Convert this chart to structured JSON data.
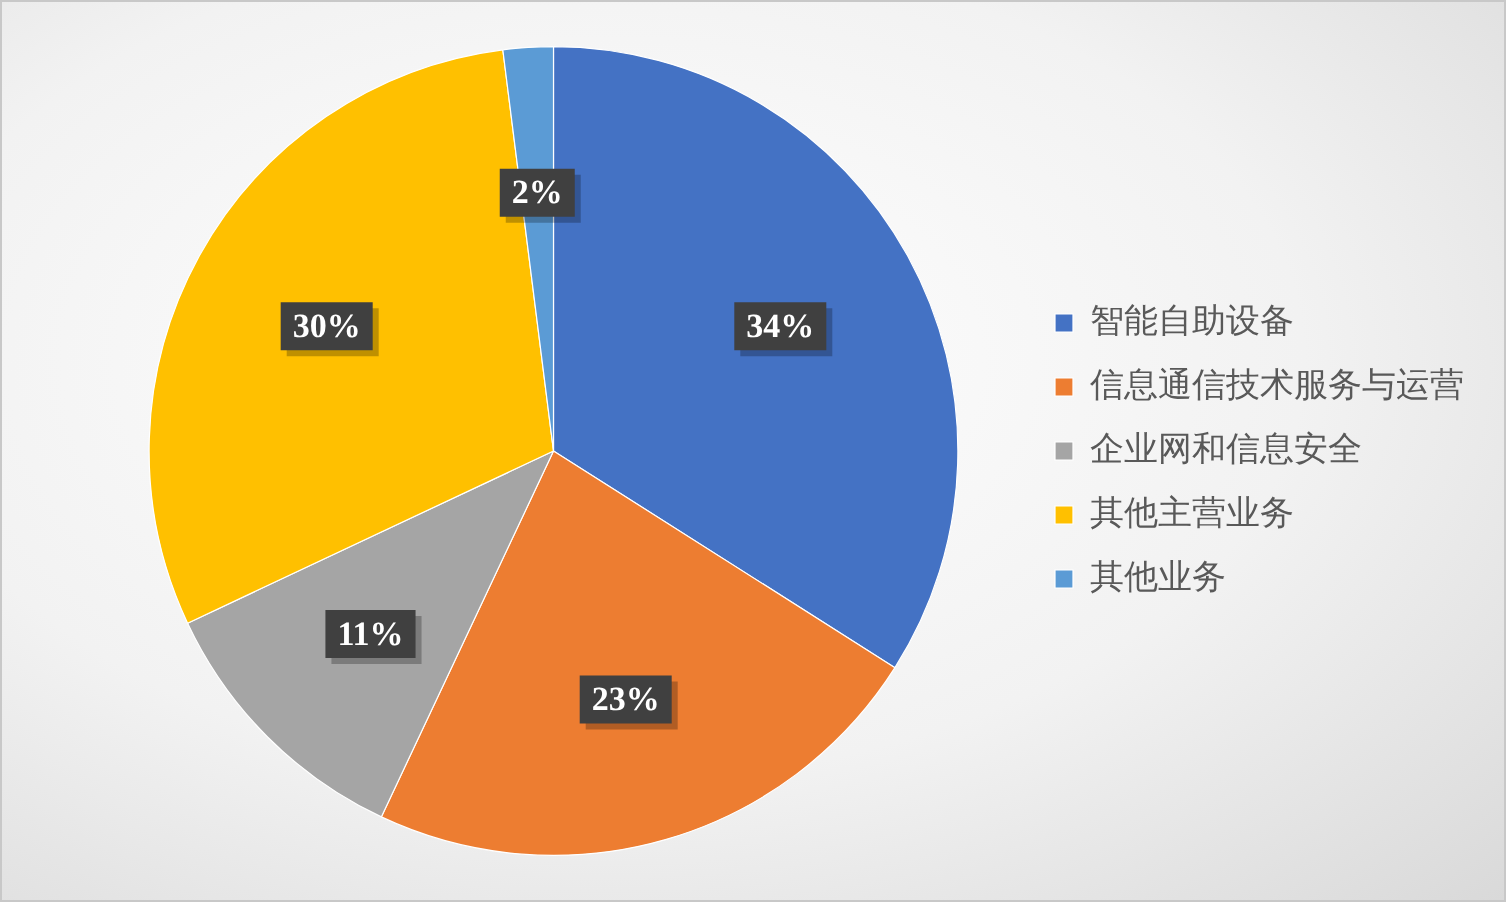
{
  "chart_data": {
    "type": "pie",
    "categories": [
      "智能自助设备",
      "信息通信技术服务与运营",
      "企业网和信息安全",
      "其他主营业务",
      "其他业务"
    ],
    "values": [
      34,
      23,
      11,
      30,
      2
    ],
    "colors": [
      "#4472c4",
      "#ed7d31",
      "#a5a5a5",
      "#ffc000",
      "#5b9bd5"
    ],
    "value_labels": [
      "34%",
      "23%",
      "11%",
      "30%",
      "2%"
    ],
    "legend": "right"
  }
}
